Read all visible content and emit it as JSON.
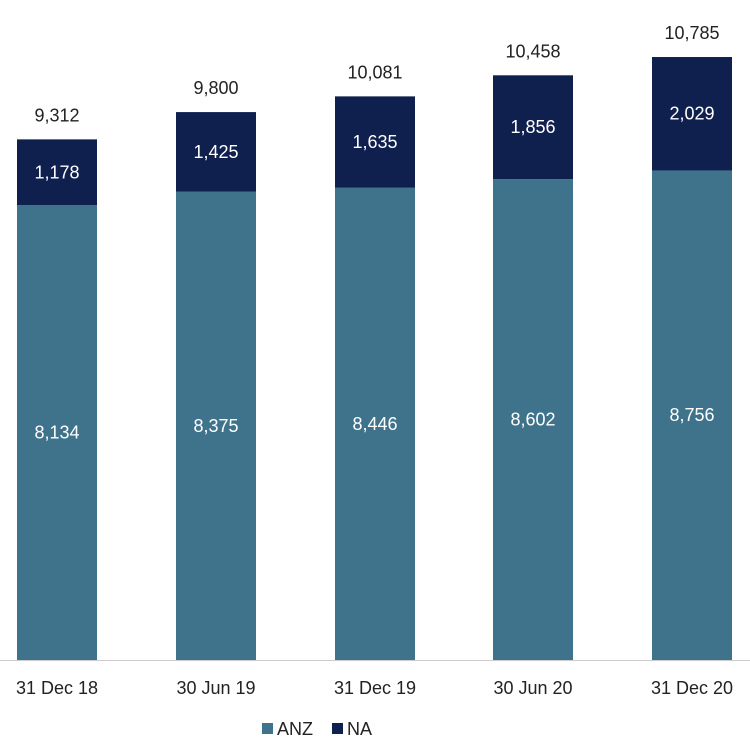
{
  "chart_data": {
    "type": "bar",
    "stacked": true,
    "categories": [
      "31 Dec 18",
      "30 Jun 19",
      "31 Dec 19",
      "30 Jun 20",
      "31 Dec 20"
    ],
    "series": [
      {
        "name": "ANZ",
        "values": [
          8134,
          8375,
          8446,
          8602,
          8756
        ],
        "value_labels": [
          "8,134",
          "8,375",
          "8,446",
          "8,602",
          "8,756"
        ],
        "color": "#3f738b"
      },
      {
        "name": "NA",
        "values": [
          1178,
          1425,
          1635,
          1856,
          2029
        ],
        "value_labels": [
          "1,178",
          "1,425",
          "1,635",
          "1,856",
          "2,029"
        ],
        "color": "#0f1f4e"
      }
    ],
    "totals": [
      9312,
      9800,
      10081,
      10458,
      10785
    ],
    "total_labels": [
      "9,312",
      "9,800",
      "10,081",
      "10,458",
      "10,785"
    ],
    "ylim": [
      0,
      11000
    ],
    "grid": false,
    "legend_position": "bottom-center"
  },
  "colors": {
    "axis": "#cccccc",
    "text": "#222222"
  }
}
